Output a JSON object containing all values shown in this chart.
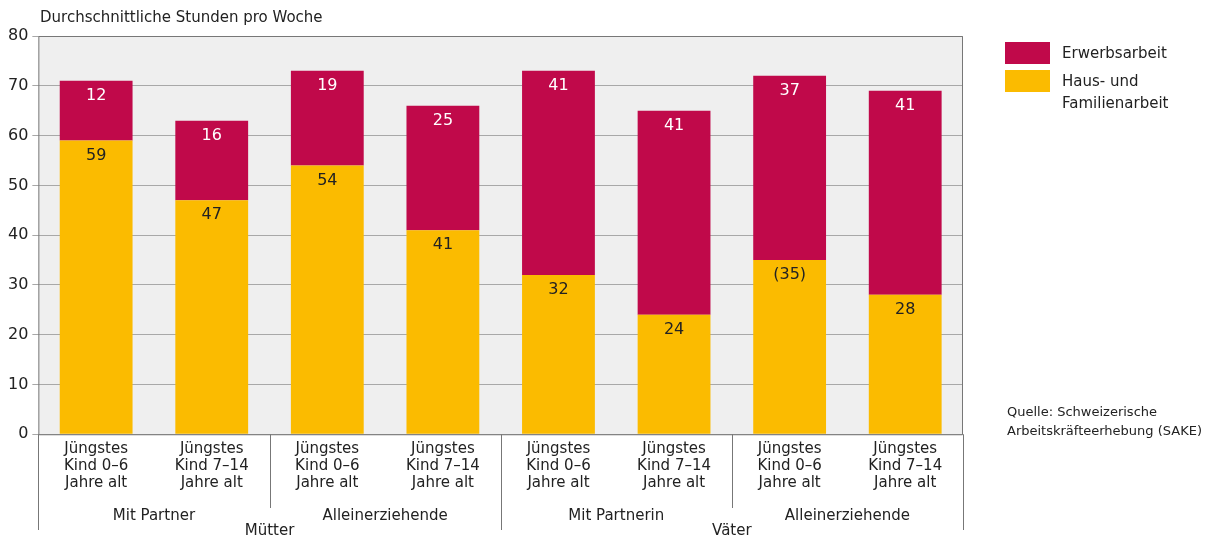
{
  "chart_data": {
    "type": "bar",
    "stacked": true,
    "ylabel": "Durchschnittliche Stunden pro Woche",
    "categories": [
      "Jüngstes\nKind 0–6\nJahre alt",
      "Jüngstes\nKind 7–14\nJahre alt",
      "Jüngstes\nKind 0–6\nJahre alt",
      "Jüngstes\nKind 7–14\nJahre alt",
      "Jüngstes\nKind 0–6\nJahre alt",
      "Jüngstes\nKind 7–14\nJahre alt",
      "Jüngstes\nKind 0–6\nJahre alt",
      "Jüngstes\nKind 7–14\nJahre alt"
    ],
    "series": [
      {
        "name": "Haus- und Familienarbeit",
        "color": "#fbbb00",
        "values": [
          59,
          47,
          54,
          41,
          32,
          24,
          35,
          28
        ],
        "value_labels": [
          "59",
          "47",
          "54",
          "41",
          "32",
          "24",
          "(35)",
          "28"
        ]
      },
      {
        "name": "Erwerbsarbeit",
        "color": "#c0094a",
        "values": [
          12,
          16,
          19,
          25,
          41,
          41,
          37,
          41
        ],
        "value_labels": [
          "12",
          "16",
          "19",
          "25",
          "41",
          "41",
          "37",
          "41"
        ]
      }
    ],
    "ylim": [
      0,
      80
    ],
    "yticks": [
      0,
      10,
      20,
      30,
      40,
      50,
      60,
      70,
      80
    ],
    "grid": "y",
    "legend": "top right",
    "annotations": [
      "Mit Partner",
      "Alleinerziehende",
      "Mit Partnerin",
      "Alleinerziehende",
      "Mütter",
      "Väter",
      "Quelle: Schweizerische Arbeitskräfteerhebung (SAKE)"
    ]
  }
}
